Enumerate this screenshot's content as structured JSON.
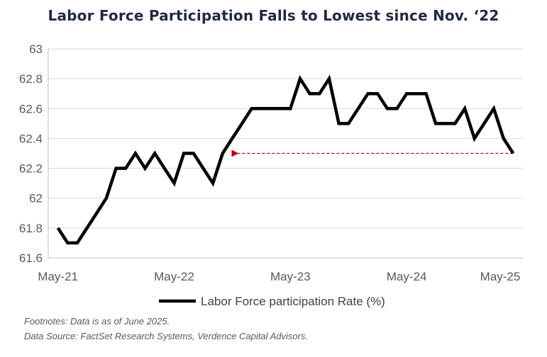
{
  "chart_data": {
    "type": "line",
    "title": "Labor Force Participation Falls to Lowest since Nov. ‘22",
    "xlabel": "",
    "ylabel": "",
    "x_ticks": [
      "May-21",
      "May-22",
      "May-23",
      "May-24",
      "May-25"
    ],
    "y_ticks": [
      "61.6",
      "61.8",
      "62",
      "62.2",
      "62.4",
      "62.6",
      "62.8",
      "63"
    ],
    "ylim": [
      61.6,
      63
    ],
    "xlim": [
      "2021-04",
      "2025-05"
    ],
    "grid": "horizontal",
    "legend_position": "bottom",
    "series": [
      {
        "name": "Labor Force participation Rate (%)",
        "color": "#000000",
        "points": [
          [
            "2021-05",
            61.8
          ],
          [
            "2021-06",
            61.7
          ],
          [
            "2021-07",
            61.7
          ],
          [
            "2021-08",
            61.8
          ],
          [
            "2021-09",
            61.9
          ],
          [
            "2021-10",
            62.0
          ],
          [
            "2021-11",
            62.2
          ],
          [
            "2021-12",
            62.2
          ],
          [
            "2022-01",
            62.3
          ],
          [
            "2022-02",
            62.2
          ],
          [
            "2022-03",
            62.3
          ],
          [
            "2022-04",
            62.2
          ],
          [
            "2022-05",
            62.1
          ],
          [
            "2022-06",
            62.3
          ],
          [
            "2022-07",
            62.3
          ],
          [
            "2022-08",
            62.2
          ],
          [
            "2022-09",
            62.1
          ],
          [
            "2022-10",
            62.3
          ],
          [
            "2022-11",
            62.4
          ],
          [
            "2022-12",
            62.5
          ],
          [
            "2023-01",
            62.6
          ],
          [
            "2023-02",
            62.6
          ],
          [
            "2023-03",
            62.6
          ],
          [
            "2023-04",
            62.6
          ],
          [
            "2023-05",
            62.6
          ],
          [
            "2023-06",
            62.8
          ],
          [
            "2023-07",
            62.7
          ],
          [
            "2023-08",
            62.7
          ],
          [
            "2023-09",
            62.8
          ],
          [
            "2023-10",
            62.5
          ],
          [
            "2023-11",
            62.5
          ],
          [
            "2023-12",
            62.6
          ],
          [
            "2024-01",
            62.7
          ],
          [
            "2024-02",
            62.7
          ],
          [
            "2024-03",
            62.6
          ],
          [
            "2024-04",
            62.6
          ],
          [
            "2024-05",
            62.7
          ],
          [
            "2024-06",
            62.7
          ],
          [
            "2024-07",
            62.7
          ],
          [
            "2024-08",
            62.5
          ],
          [
            "2024-09",
            62.5
          ],
          [
            "2024-10",
            62.5
          ],
          [
            "2024-11",
            62.6
          ],
          [
            "2024-12",
            62.4
          ],
          [
            "2025-01",
            62.5
          ],
          [
            "2025-02",
            62.6
          ],
          [
            "2025-03",
            62.4
          ],
          [
            "2025-04",
            62.3
          ]
        ]
      }
    ],
    "annotation": {
      "type": "dashed-arrow",
      "color": "#c00000",
      "value": 62.3,
      "from": "2025-04",
      "to": "2022-11"
    }
  },
  "footnotes": [
    "Footnotes: Data is as of June 2025.",
    "Data Source: FactSet Research Systems, Verdence Capital Advisors."
  ]
}
